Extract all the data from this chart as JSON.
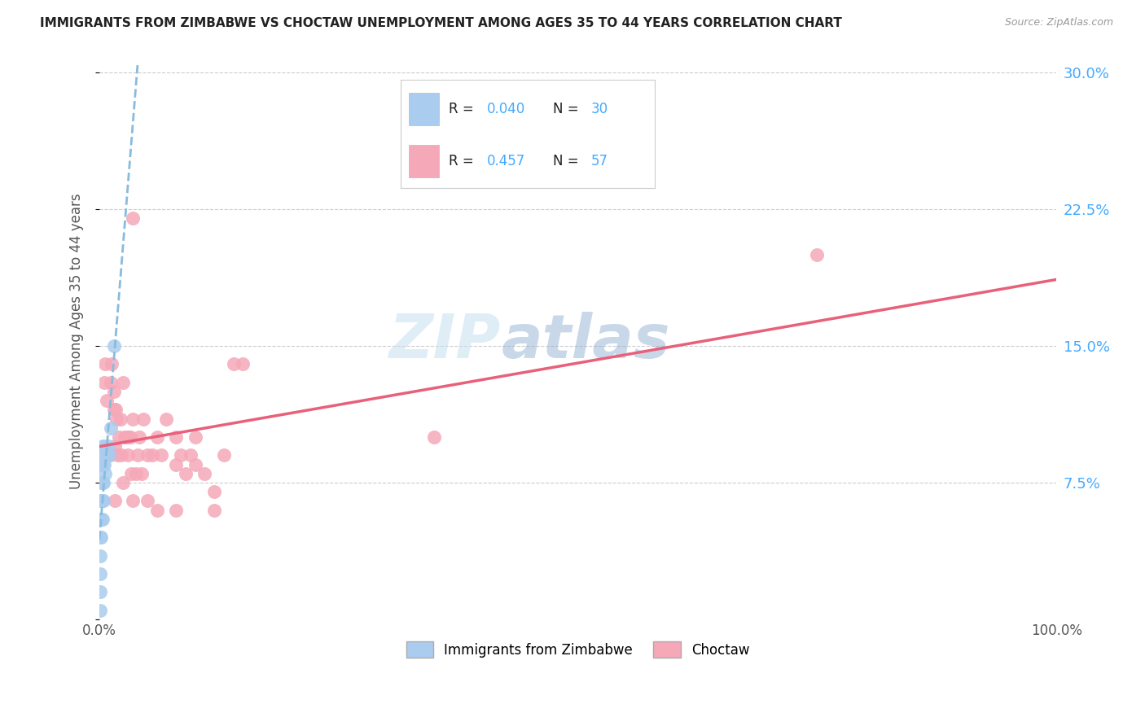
{
  "title": "IMMIGRANTS FROM ZIMBABWE VS CHOCTAW UNEMPLOYMENT AMONG AGES 35 TO 44 YEARS CORRELATION CHART",
  "source": "Source: ZipAtlas.com",
  "ylabel": "Unemployment Among Ages 35 to 44 years",
  "legend_r1": "0.040",
  "legend_n1": "30",
  "legend_r2": "0.457",
  "legend_n2": "57",
  "legend_label1": "Immigrants from Zimbabwe",
  "legend_label2": "Choctaw",
  "color_blue": "#aaccee",
  "color_pink": "#f5a8b8",
  "color_text_blue": "#44aaff",
  "line_blue_color": "#88bbdd",
  "line_pink_color": "#e8607a",
  "watermark_zip": "ZIP",
  "watermark_atlas": "atlas",
  "background": "#ffffff",
  "grid_color": "#cccccc",
  "blue_x": [
    0.001,
    0.001,
    0.001,
    0.001,
    0.001,
    0.001,
    0.001,
    0.002,
    0.002,
    0.002,
    0.002,
    0.002,
    0.003,
    0.003,
    0.003,
    0.003,
    0.003,
    0.004,
    0.004,
    0.004,
    0.005,
    0.005,
    0.006,
    0.006,
    0.007,
    0.008,
    0.009,
    0.01,
    0.012,
    0.015
  ],
  "blue_y": [
    0.005,
    0.015,
    0.025,
    0.035,
    0.045,
    0.055,
    0.065,
    0.045,
    0.055,
    0.065,
    0.075,
    0.085,
    0.055,
    0.065,
    0.075,
    0.085,
    0.095,
    0.065,
    0.075,
    0.09,
    0.085,
    0.095,
    0.08,
    0.09,
    0.09,
    0.09,
    0.095,
    0.09,
    0.105,
    0.15
  ],
  "pink_x": [
    0.005,
    0.006,
    0.008,
    0.009,
    0.01,
    0.011,
    0.012,
    0.013,
    0.015,
    0.015,
    0.016,
    0.017,
    0.018,
    0.019,
    0.02,
    0.022,
    0.023,
    0.025,
    0.026,
    0.028,
    0.03,
    0.031,
    0.032,
    0.033,
    0.035,
    0.038,
    0.04,
    0.042,
    0.044,
    0.046,
    0.05,
    0.055,
    0.06,
    0.065,
    0.07,
    0.08,
    0.085,
    0.09,
    0.095,
    0.1,
    0.11,
    0.12,
    0.13,
    0.14,
    0.15,
    0.016,
    0.025,
    0.035,
    0.05,
    0.06,
    0.08,
    0.1,
    0.12,
    0.35,
    0.75,
    0.08,
    0.035
  ],
  "pink_y": [
    0.13,
    0.14,
    0.12,
    0.09,
    0.09,
    0.09,
    0.13,
    0.14,
    0.125,
    0.115,
    0.095,
    0.115,
    0.11,
    0.09,
    0.1,
    0.11,
    0.09,
    0.13,
    0.1,
    0.1,
    0.09,
    0.1,
    0.1,
    0.08,
    0.11,
    0.08,
    0.09,
    0.1,
    0.08,
    0.11,
    0.09,
    0.09,
    0.1,
    0.09,
    0.11,
    0.1,
    0.09,
    0.08,
    0.09,
    0.1,
    0.08,
    0.07,
    0.09,
    0.14,
    0.14,
    0.065,
    0.075,
    0.065,
    0.065,
    0.06,
    0.06,
    0.085,
    0.06,
    0.1,
    0.2,
    0.085,
    0.22
  ],
  "xlim": [
    0.0,
    1.0
  ],
  "ylim": [
    0.0,
    0.3
  ],
  "yticks": [
    0.0,
    0.075,
    0.15,
    0.225,
    0.3
  ],
  "ytick_labels": [
    "",
    "7.5%",
    "15.0%",
    "22.5%",
    "30.0%"
  ],
  "xtick_positions": [
    0.0,
    0.25,
    0.5,
    0.75,
    1.0
  ],
  "xtick_labels": [
    "0.0%",
    "",
    "",
    "",
    "100.0%"
  ]
}
